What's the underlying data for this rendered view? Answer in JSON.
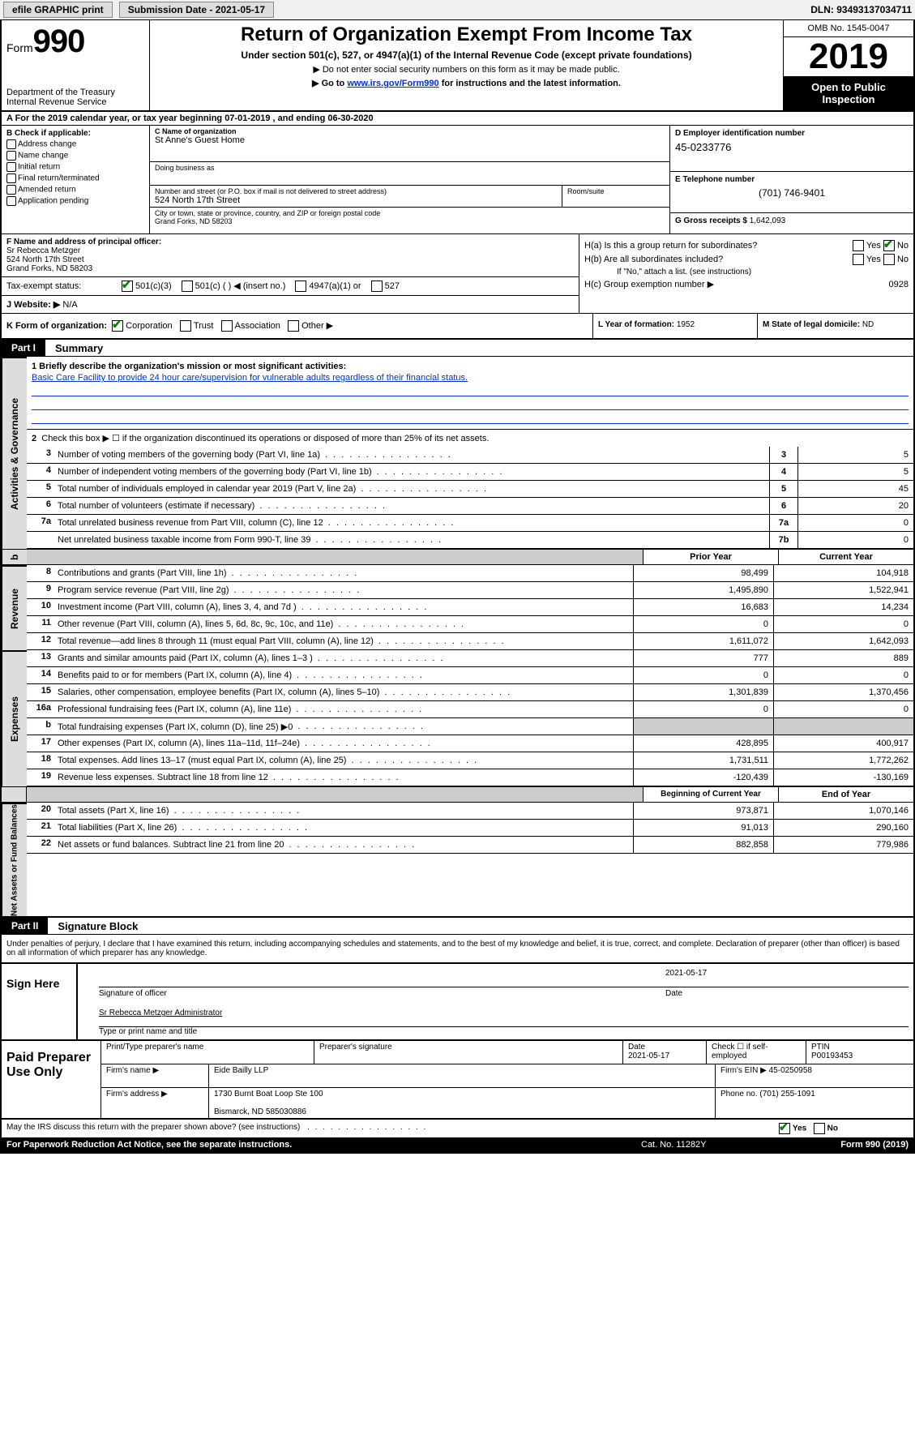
{
  "topbar": {
    "efile": "efile GRAPHIC print",
    "submission_label": "Submission Date - 2021-05-17",
    "dln": "DLN: 93493137034711"
  },
  "header": {
    "form_prefix": "Form",
    "form_number": "990",
    "dept": "Department of the Treasury\nInternal Revenue Service",
    "title": "Return of Organization Exempt From Income Tax",
    "sub1": "Under section 501(c), 527, or 4947(a)(1) of the Internal Revenue Code (except private foundations)",
    "sub2": "▶ Do not enter social security numbers on this form as it may be made public.",
    "link_prefix": "▶ Go to ",
    "link_url": "www.irs.gov/Form990",
    "link_suffix": " for instructions and the latest information.",
    "omb": "OMB No. 1545-0047",
    "year": "2019",
    "open": "Open to Public Inspection"
  },
  "period": "A  For the 2019 calendar year, or tax year beginning 07-01-2019   , and ending 06-30-2020",
  "sectionB": {
    "label": "B Check if applicable:",
    "opts": [
      "Address change",
      "Name change",
      "Initial return",
      "Final return/terminated",
      "Amended return",
      "Application pending"
    ]
  },
  "sectionC": {
    "name_label": "C Name of organization",
    "name": "St Anne's Guest Home",
    "dba_label": "Doing business as",
    "street_label": "Number and street (or P.O. box if mail is not delivered to street address)",
    "street": "524 North 17th Street",
    "suite_label": "Room/suite",
    "city_label": "City or town, state or province, country, and ZIP or foreign postal code",
    "city": "Grand Forks, ND  58203"
  },
  "sectionD": {
    "ein_label": "D Employer identification number",
    "ein": "45-0233776",
    "tel_label": "E Telephone number",
    "tel": "(701) 746-9401",
    "gross_label": "G Gross receipts $",
    "gross": "1,642,093"
  },
  "sectionF": {
    "officer_label": "F  Name and address of principal officer:",
    "officer_name": "Sr Rebecca Metzger",
    "officer_addr1": "524 North 17th Street",
    "officer_addr2": "Grand Forks, ND  58203",
    "taxex_label": "Tax-exempt status:",
    "taxex_501c3": "501(c)(3)",
    "taxex_501c": "501(c) (  ) ◀ (insert no.)",
    "taxex_4947": "4947(a)(1) or",
    "taxex_527": "527",
    "website_label": "J  Website: ▶",
    "website": "N/A"
  },
  "sectionH": {
    "ha_label": "H(a)  Is this a group return for subordinates?",
    "hb_label": "H(b)  Are all subordinates included?",
    "hb_note": "If \"No,\" attach a list. (see instructions)",
    "hc_label": "H(c)  Group exemption number ▶",
    "hc_val": "0928",
    "yes": "Yes",
    "no": "No"
  },
  "sectionK": {
    "label": "K Form of organization:",
    "corp": "Corporation",
    "trust": "Trust",
    "assoc": "Association",
    "other": "Other ▶"
  },
  "sectionL": {
    "label": "L Year of formation:",
    "val": "1952"
  },
  "sectionM": {
    "label": "M State of legal domicile:",
    "val": "ND"
  },
  "part1": {
    "tag": "Part I",
    "title": "Summary",
    "q1_label": "1  Briefly describe the organization's mission or most significant activities:",
    "q1_text": "Basic Care Facility to provide 24 hour care/supervision for vulnerable adults regardless of their financial status.",
    "q2": "Check this box ▶ ☐  if the organization discontinued its operations or disposed of more than 25% of its net assets.",
    "lines_top": [
      {
        "n": "3",
        "t": "Number of voting members of the governing body (Part VI, line 1a)",
        "b": "3",
        "v": "5"
      },
      {
        "n": "4",
        "t": "Number of independent voting members of the governing body (Part VI, line 1b)",
        "b": "4",
        "v": "5"
      },
      {
        "n": "5",
        "t": "Total number of individuals employed in calendar year 2019 (Part V, line 2a)",
        "b": "5",
        "v": "45"
      },
      {
        "n": "6",
        "t": "Total number of volunteers (estimate if necessary)",
        "b": "6",
        "v": "20"
      },
      {
        "n": "7a",
        "t": "Total unrelated business revenue from Part VIII, column (C), line 12",
        "b": "7a",
        "v": "0"
      },
      {
        "n": "",
        "t": "Net unrelated business taxable income from Form 990-T, line 39",
        "b": "7b",
        "v": "0"
      }
    ],
    "col_prior": "Prior Year",
    "col_current": "Current Year",
    "revenue": [
      {
        "n": "8",
        "t": "Contributions and grants (Part VIII, line 1h)",
        "p": "98,499",
        "c": "104,918"
      },
      {
        "n": "9",
        "t": "Program service revenue (Part VIII, line 2g)",
        "p": "1,495,890",
        "c": "1,522,941"
      },
      {
        "n": "10",
        "t": "Investment income (Part VIII, column (A), lines 3, 4, and 7d )",
        "p": "16,683",
        "c": "14,234"
      },
      {
        "n": "11",
        "t": "Other revenue (Part VIII, column (A), lines 5, 6d, 8c, 9c, 10c, and 11e)",
        "p": "0",
        "c": "0"
      },
      {
        "n": "12",
        "t": "Total revenue—add lines 8 through 11 (must equal Part VIII, column (A), line 12)",
        "p": "1,611,072",
        "c": "1,642,093"
      }
    ],
    "expenses": [
      {
        "n": "13",
        "t": "Grants and similar amounts paid (Part IX, column (A), lines 1–3 )",
        "p": "777",
        "c": "889"
      },
      {
        "n": "14",
        "t": "Benefits paid to or for members (Part IX, column (A), line 4)",
        "p": "0",
        "c": "0"
      },
      {
        "n": "15",
        "t": "Salaries, other compensation, employee benefits (Part IX, column (A), lines 5–10)",
        "p": "1,301,839",
        "c": "1,370,456"
      },
      {
        "n": "16a",
        "t": "Professional fundraising fees (Part IX, column (A), line 11e)",
        "p": "0",
        "c": "0"
      },
      {
        "n": "b",
        "t": "Total fundraising expenses (Part IX, column (D), line 25) ▶0",
        "p": "grey",
        "c": "grey"
      },
      {
        "n": "17",
        "t": "Other expenses (Part IX, column (A), lines 11a–11d, 11f–24e)",
        "p": "428,895",
        "c": "400,917"
      },
      {
        "n": "18",
        "t": "Total expenses. Add lines 13–17 (must equal Part IX, column (A), line 25)",
        "p": "1,731,511",
        "c": "1,772,262"
      },
      {
        "n": "19",
        "t": "Revenue less expenses. Subtract line 18 from line 12",
        "p": "-120,439",
        "c": "-130,169"
      }
    ],
    "col_begin": "Beginning of Current Year",
    "col_end": "End of Year",
    "netassets": [
      {
        "n": "20",
        "t": "Total assets (Part X, line 16)",
        "p": "973,871",
        "c": "1,070,146"
      },
      {
        "n": "21",
        "t": "Total liabilities (Part X, line 26)",
        "p": "91,013",
        "c": "290,160"
      },
      {
        "n": "22",
        "t": "Net assets or fund balances. Subtract line 21 from line 20",
        "p": "882,858",
        "c": "779,986"
      }
    ],
    "vlabels": {
      "gov": "Activities & Governance",
      "rev": "Revenue",
      "exp": "Expenses",
      "net": "Net Assets or Fund Balances"
    }
  },
  "part2": {
    "tag": "Part II",
    "title": "Signature Block",
    "perjury": "Under penalties of perjury, I declare that I have examined this return, including accompanying schedules and statements, and to the best of my knowledge and belief, it is true, correct, and complete. Declaration of preparer (other than officer) is based on all information of which preparer has any knowledge.",
    "sign_here": "Sign Here",
    "sig_officer": "Signature of officer",
    "sig_date": "2021-05-17",
    "date_label": "Date",
    "officer_typed": "Sr Rebecca Metzger  Administrator",
    "type_label": "Type or print name and title",
    "paid": "Paid Preparer Use Only",
    "prep_name_label": "Print/Type preparer's name",
    "prep_sig_label": "Preparer's signature",
    "prep_date_label": "Date",
    "prep_date": "2021-05-17",
    "self_emp": "Check ☐ if self-employed",
    "ptin_label": "PTIN",
    "ptin": "P00193453",
    "firm_name_label": "Firm's name    ▶",
    "firm_name": "Eide Bailly LLP",
    "firm_ein_label": "Firm's EIN ▶",
    "firm_ein": "45-0250958",
    "firm_addr_label": "Firm's address ▶",
    "firm_addr1": "1730 Burnt Boat Loop Ste 100",
    "firm_addr2": "Bismarck, ND  585030886",
    "phone_label": "Phone no.",
    "phone": "(701) 255-1091",
    "discuss": "May the IRS discuss this return with the preparer shown above? (see instructions)",
    "yes": "Yes",
    "no": "No"
  },
  "footer": {
    "pwr": "For Paperwork Reduction Act Notice, see the separate instructions.",
    "cat": "Cat. No. 11282Y",
    "form": "Form 990 (2019)"
  }
}
